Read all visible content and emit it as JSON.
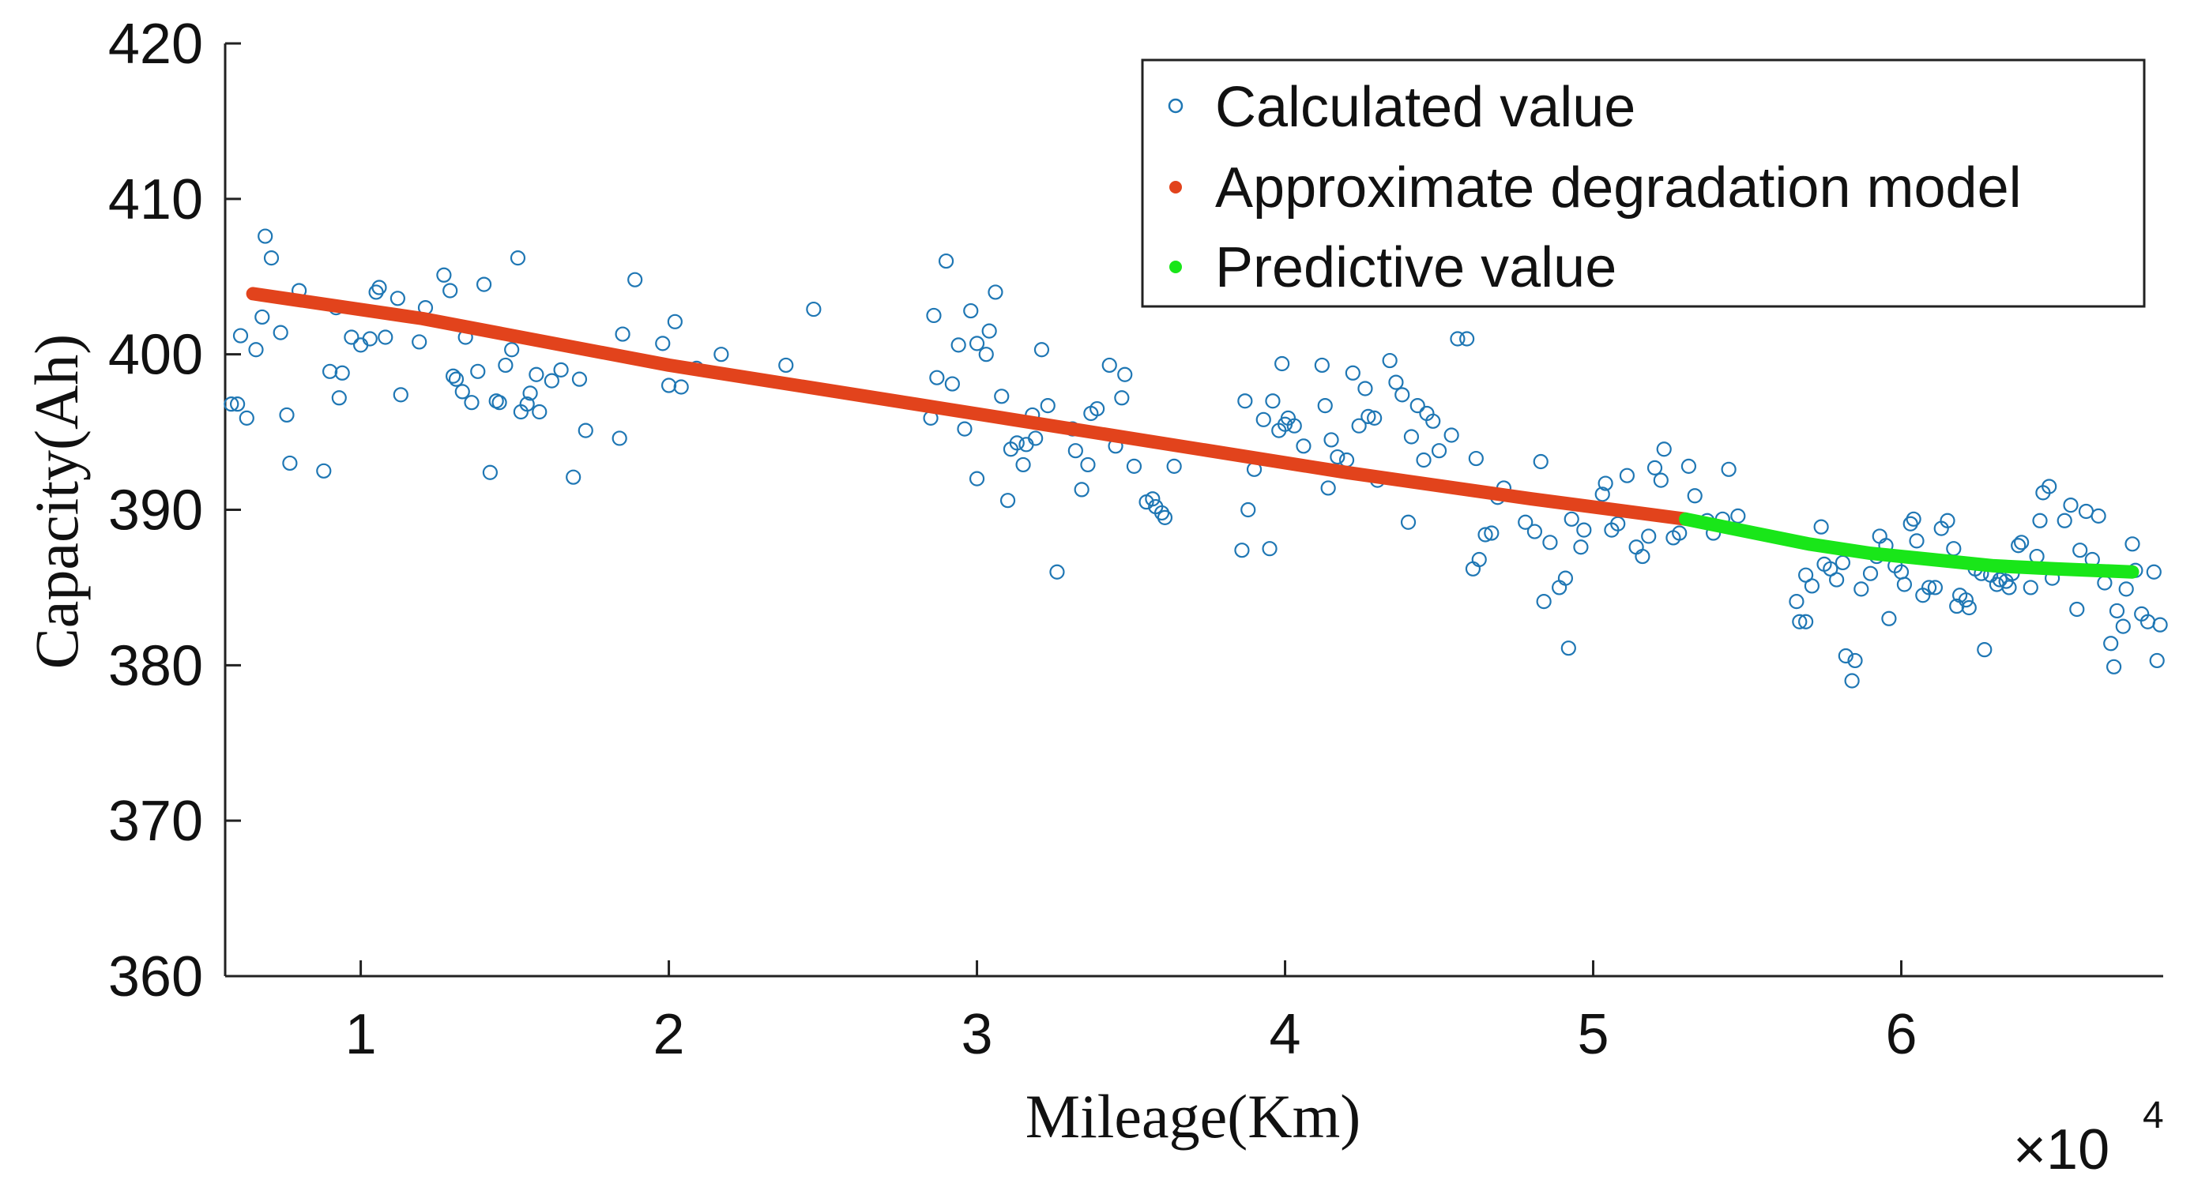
{
  "chart_data": {
    "type": "scatter",
    "title": "",
    "xlabel": "Mileage(Km)",
    "ylabel": "Capacity(Ah)",
    "x_multiplier": "×10",
    "x_multiplier_exponent": "4",
    "xlim": [
      0.56,
      6.85
    ],
    "ylim": [
      360,
      420
    ],
    "xticks": [
      1,
      2,
      3,
      4,
      5,
      6
    ],
    "yticks": [
      360,
      370,
      380,
      390,
      400,
      410,
      420
    ],
    "x_tick_labels": [
      "1",
      "2",
      "3",
      "4",
      "5",
      "6"
    ],
    "y_tick_labels": [
      "360",
      "370",
      "380",
      "390",
      "400",
      "410",
      "420"
    ],
    "grid": false,
    "legend_position": "top-right",
    "series": [
      {
        "name": "Calculated value",
        "kind": "scatter",
        "marker": "open-circle",
        "color": "#1f77b4",
        "points": [
          [
            0.58,
            396.8
          ],
          [
            0.6,
            396.8
          ],
          [
            0.61,
            401.2
          ],
          [
            0.63,
            395.9
          ],
          [
            0.66,
            400.3
          ],
          [
            0.68,
            402.4
          ],
          [
            0.69,
            407.6
          ],
          [
            0.71,
            406.2
          ],
          [
            0.74,
            401.4
          ],
          [
            0.76,
            396.1
          ],
          [
            0.77,
            393.0
          ],
          [
            0.8,
            404.1
          ],
          [
            0.88,
            392.5
          ],
          [
            0.9,
            398.9
          ],
          [
            0.92,
            403.0
          ],
          [
            0.93,
            397.2
          ],
          [
            0.94,
            398.8
          ],
          [
            0.97,
            401.1
          ],
          [
            1.0,
            400.6
          ],
          [
            1.03,
            401.0
          ],
          [
            1.05,
            404.0
          ],
          [
            1.06,
            404.3
          ],
          [
            1.08,
            401.1
          ],
          [
            1.12,
            403.6
          ],
          [
            1.13,
            397.4
          ],
          [
            1.19,
            400.8
          ],
          [
            1.21,
            403.0
          ],
          [
            1.27,
            405.1
          ],
          [
            1.29,
            404.1
          ],
          [
            1.3,
            398.6
          ],
          [
            1.31,
            398.4
          ],
          [
            1.33,
            397.6
          ],
          [
            1.34,
            401.1
          ],
          [
            1.36,
            396.9
          ],
          [
            1.38,
            398.9
          ],
          [
            1.4,
            404.5
          ],
          [
            1.42,
            392.4
          ],
          [
            1.44,
            397.0
          ],
          [
            1.45,
            396.9
          ],
          [
            1.47,
            399.3
          ],
          [
            1.49,
            400.3
          ],
          [
            1.51,
            406.2
          ],
          [
            1.52,
            396.3
          ],
          [
            1.54,
            396.8
          ],
          [
            1.55,
            397.5
          ],
          [
            1.57,
            398.7
          ],
          [
            1.58,
            396.3
          ],
          [
            1.62,
            398.3
          ],
          [
            1.65,
            399.0
          ],
          [
            1.69,
            392.1
          ],
          [
            1.71,
            398.4
          ],
          [
            1.73,
            395.1
          ],
          [
            1.84,
            394.6
          ],
          [
            1.85,
            401.3
          ],
          [
            1.89,
            404.8
          ],
          [
            1.98,
            400.7
          ],
          [
            2.0,
            398.0
          ],
          [
            2.02,
            402.1
          ],
          [
            2.04,
            397.9
          ],
          [
            2.09,
            399.1
          ],
          [
            2.17,
            400.0
          ],
          [
            2.38,
            399.3
          ],
          [
            2.47,
            402.9
          ],
          [
            2.85,
            395.9
          ],
          [
            2.86,
            402.5
          ],
          [
            2.87,
            398.5
          ],
          [
            2.9,
            406.0
          ],
          [
            2.92,
            398.1
          ],
          [
            2.94,
            400.6
          ],
          [
            2.96,
            395.2
          ],
          [
            2.98,
            402.8
          ],
          [
            3.0,
            392.0
          ],
          [
            3.0,
            400.7
          ],
          [
            3.03,
            400.0
          ],
          [
            3.04,
            401.5
          ],
          [
            3.06,
            404.0
          ],
          [
            3.08,
            397.3
          ],
          [
            3.1,
            390.6
          ],
          [
            3.11,
            393.9
          ],
          [
            3.13,
            394.3
          ],
          [
            3.15,
            392.9
          ],
          [
            3.16,
            394.2
          ],
          [
            3.18,
            396.1
          ],
          [
            3.19,
            394.6
          ],
          [
            3.21,
            400.3
          ],
          [
            3.23,
            396.7
          ],
          [
            3.26,
            386.0
          ],
          [
            3.31,
            395.2
          ],
          [
            3.32,
            393.8
          ],
          [
            3.34,
            391.3
          ],
          [
            3.36,
            392.9
          ],
          [
            3.37,
            396.2
          ],
          [
            3.39,
            396.5
          ],
          [
            3.43,
            399.3
          ],
          [
            3.45,
            394.1
          ],
          [
            3.47,
            397.2
          ],
          [
            3.48,
            398.7
          ],
          [
            3.51,
            392.8
          ],
          [
            3.55,
            390.5
          ],
          [
            3.57,
            390.7
          ],
          [
            3.58,
            390.2
          ],
          [
            3.6,
            389.8
          ],
          [
            3.61,
            389.5
          ],
          [
            3.64,
            392.8
          ],
          [
            3.86,
            387.4
          ],
          [
            3.87,
            397.0
          ],
          [
            3.88,
            390.0
          ],
          [
            3.9,
            392.6
          ],
          [
            3.93,
            395.8
          ],
          [
            3.95,
            387.5
          ],
          [
            3.96,
            397.0
          ],
          [
            3.98,
            395.1
          ],
          [
            3.99,
            399.4
          ],
          [
            4.0,
            395.5
          ],
          [
            4.01,
            395.9
          ],
          [
            4.03,
            395.4
          ],
          [
            4.06,
            394.1
          ],
          [
            4.12,
            399.3
          ],
          [
            4.13,
            396.7
          ],
          [
            4.14,
            391.4
          ],
          [
            4.15,
            394.5
          ],
          [
            4.17,
            393.4
          ],
          [
            4.2,
            393.2
          ],
          [
            4.22,
            398.8
          ],
          [
            4.24,
            395.4
          ],
          [
            4.26,
            397.8
          ],
          [
            4.27,
            396.0
          ],
          [
            4.29,
            395.9
          ],
          [
            4.3,
            391.9
          ],
          [
            4.34,
            399.6
          ],
          [
            4.36,
            398.2
          ],
          [
            4.38,
            397.4
          ],
          [
            4.4,
            389.2
          ],
          [
            4.41,
            394.7
          ],
          [
            4.43,
            396.7
          ],
          [
            4.45,
            393.2
          ],
          [
            4.46,
            396.2
          ],
          [
            4.48,
            395.7
          ],
          [
            4.5,
            393.8
          ],
          [
            4.54,
            394.8
          ],
          [
            4.56,
            401.0
          ],
          [
            4.59,
            401.0
          ],
          [
            4.61,
            386.2
          ],
          [
            4.62,
            393.3
          ],
          [
            4.63,
            386.8
          ],
          [
            4.65,
            388.4
          ],
          [
            4.67,
            388.5
          ],
          [
            4.69,
            390.8
          ],
          [
            4.71,
            391.4
          ],
          [
            4.78,
            389.2
          ],
          [
            4.81,
            388.6
          ],
          [
            4.83,
            393.1
          ],
          [
            4.84,
            384.1
          ],
          [
            4.86,
            387.9
          ],
          [
            4.89,
            385.0
          ],
          [
            4.91,
            385.6
          ],
          [
            4.92,
            381.1
          ],
          [
            4.93,
            389.4
          ],
          [
            4.96,
            387.6
          ],
          [
            4.97,
            388.7
          ],
          [
            5.03,
            391.0
          ],
          [
            5.04,
            391.7
          ],
          [
            5.06,
            388.7
          ],
          [
            5.08,
            389.1
          ],
          [
            5.11,
            392.2
          ],
          [
            5.14,
            387.6
          ],
          [
            5.16,
            387.0
          ],
          [
            5.18,
            388.3
          ],
          [
            5.2,
            392.7
          ],
          [
            5.22,
            391.9
          ],
          [
            5.23,
            393.9
          ],
          [
            5.26,
            388.2
          ],
          [
            5.28,
            388.5
          ],
          [
            5.31,
            392.8
          ],
          [
            5.33,
            390.9
          ],
          [
            5.37,
            389.3
          ],
          [
            5.39,
            388.5
          ],
          [
            5.42,
            389.4
          ],
          [
            5.44,
            392.6
          ],
          [
            5.47,
            389.6
          ],
          [
            5.66,
            384.1
          ],
          [
            5.67,
            382.8
          ],
          [
            5.69,
            382.8
          ],
          [
            5.69,
            385.8
          ],
          [
            5.71,
            385.1
          ],
          [
            5.74,
            388.9
          ],
          [
            5.75,
            386.5
          ],
          [
            5.77,
            386.2
          ],
          [
            5.79,
            385.5
          ],
          [
            5.81,
            386.6
          ],
          [
            5.82,
            380.6
          ],
          [
            5.84,
            379.0
          ],
          [
            5.85,
            380.3
          ],
          [
            5.87,
            384.9
          ],
          [
            5.9,
            385.9
          ],
          [
            5.92,
            387.0
          ],
          [
            5.93,
            388.3
          ],
          [
            5.95,
            387.7
          ],
          [
            5.96,
            383.0
          ],
          [
            5.98,
            386.4
          ],
          [
            6.0,
            386.0
          ],
          [
            6.01,
            385.2
          ],
          [
            6.03,
            389.1
          ],
          [
            6.04,
            389.4
          ],
          [
            6.05,
            388.0
          ],
          [
            6.07,
            384.5
          ],
          [
            6.09,
            385.0
          ],
          [
            6.11,
            385.0
          ],
          [
            6.13,
            388.8
          ],
          [
            6.15,
            389.3
          ],
          [
            6.17,
            387.5
          ],
          [
            6.18,
            383.8
          ],
          [
            6.19,
            384.5
          ],
          [
            6.21,
            384.2
          ],
          [
            6.22,
            383.7
          ],
          [
            6.24,
            386.2
          ],
          [
            6.26,
            385.9
          ],
          [
            6.27,
            381.0
          ],
          [
            6.29,
            385.8
          ],
          [
            6.31,
            385.2
          ],
          [
            6.32,
            385.5
          ],
          [
            6.34,
            385.4
          ],
          [
            6.35,
            385.0
          ],
          [
            6.36,
            385.9
          ],
          [
            6.38,
            387.7
          ],
          [
            6.39,
            387.9
          ],
          [
            6.42,
            385.0
          ],
          [
            6.44,
            387.0
          ],
          [
            6.45,
            389.3
          ],
          [
            6.46,
            391.1
          ],
          [
            6.48,
            391.5
          ],
          [
            6.49,
            385.6
          ],
          [
            6.53,
            389.3
          ],
          [
            6.55,
            390.3
          ],
          [
            6.57,
            383.6
          ],
          [
            6.58,
            387.4
          ],
          [
            6.6,
            389.9
          ],
          [
            6.62,
            386.8
          ],
          [
            6.64,
            389.6
          ],
          [
            6.66,
            385.3
          ],
          [
            6.68,
            381.4
          ],
          [
            6.69,
            379.9
          ],
          [
            6.7,
            383.5
          ],
          [
            6.72,
            382.5
          ],
          [
            6.73,
            384.9
          ],
          [
            6.75,
            387.8
          ],
          [
            6.76,
            386.1
          ],
          [
            6.78,
            383.3
          ],
          [
            6.8,
            382.8
          ],
          [
            6.82,
            386.0
          ],
          [
            6.83,
            380.3
          ],
          [
            6.84,
            382.6
          ]
        ]
      },
      {
        "name": "Approximate degradation model",
        "kind": "line",
        "color": "#e2431c",
        "points": [
          [
            0.65,
            403.9
          ],
          [
            1.2,
            402.3
          ],
          [
            2.0,
            399.3
          ],
          [
            2.8,
            396.8
          ],
          [
            3.5,
            394.6
          ],
          [
            4.2,
            392.4
          ],
          [
            4.8,
            390.7
          ],
          [
            5.3,
            389.4
          ]
        ]
      },
      {
        "name": "Predictive value",
        "kind": "line",
        "color": "#19e619",
        "points": [
          [
            5.3,
            389.4
          ],
          [
            5.5,
            388.6
          ],
          [
            5.7,
            387.8
          ],
          [
            5.9,
            387.2
          ],
          [
            6.1,
            386.8
          ],
          [
            6.3,
            386.4
          ],
          [
            6.5,
            386.2
          ],
          [
            6.75,
            386.0
          ]
        ]
      }
    ]
  }
}
